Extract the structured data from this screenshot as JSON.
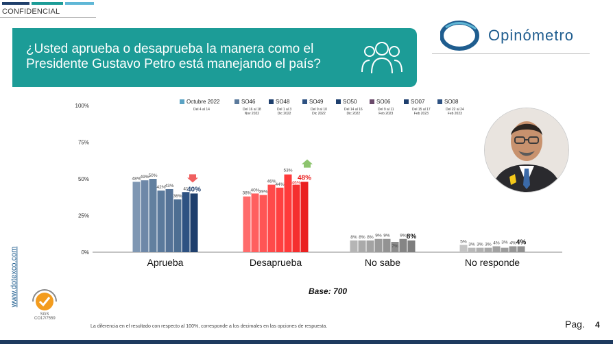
{
  "header": {
    "confidential": "CONFIDENCIAL",
    "topbar_colors": [
      "#1f3f6b",
      "#1c9c97",
      "#5fb7d6"
    ]
  },
  "banner": {
    "title_line1": "¿Usted aprueba o desaprueba la manera como el",
    "title_line2": "Presidente Gustavo Petro está manejando el país?",
    "icon": "people-group-icon",
    "color": "#1c9c97"
  },
  "logo": {
    "text": "Opinómetro",
    "color": "#1f5d8f"
  },
  "chart_data": {
    "type": "bar",
    "categories": [
      "Aprueba",
      "Desaprueba",
      "No sabe",
      "No responde"
    ],
    "series": [
      {
        "name": "Octubre 2022",
        "sub": "Del 4 al 14",
        "values": [
          48,
          38,
          8,
          5
        ]
      },
      {
        "name": "SO46",
        "sub": "Del 16 al 18\nNov 2022",
        "values": [
          49,
          40,
          8,
          3
        ]
      },
      {
        "name": "SO48",
        "sub": "Del 1 al 3\nDic 2022",
        "values": [
          50,
          39,
          8,
          3
        ]
      },
      {
        "name": "SO49",
        "sub": "Del 9 al 10\nDic 2022",
        "values": [
          42,
          46,
          9,
          3
        ]
      },
      {
        "name": "SO50",
        "sub": "Del 14 al 16\nDic 2022",
        "values": [
          43,
          44,
          9,
          4
        ]
      },
      {
        "name": "SO06",
        "sub": "Del 9 al 11\nFeb 2023",
        "values": [
          36,
          53,
          7,
          3
        ]
      },
      {
        "name": "SO07",
        "sub": "Del 15 al 17\nFeb 2023",
        "values": [
          41,
          46,
          9,
          4
        ]
      },
      {
        "name": "SO08",
        "sub": "Del 22 al 24\nFeb 2023",
        "values": [
          40,
          48,
          8,
          4
        ]
      }
    ],
    "data_labels": [
      [
        "48%",
        "49%",
        "50%",
        "42%",
        "43%",
        "36%",
        "41",
        "40%"
      ],
      [
        "38%",
        "40%",
        "39%",
        "46%",
        "44%",
        "53%",
        "46%",
        "48%"
      ],
      [
        "8%",
        "8%",
        "8%",
        "9%",
        "9%",
        "7%",
        "9%",
        "8%"
      ],
      [
        "5%",
        "3%",
        "3%",
        "3%",
        "4%",
        "3%",
        "4%",
        "4%"
      ]
    ],
    "category_colors": [
      [
        "#7f97b3",
        "#6e88a8",
        "#62809f",
        "#5b7a9c",
        "#557397",
        "#4d6e92",
        "#2e5282",
        "#1e3f6d"
      ],
      [
        "#ff6b6b",
        "#ff5f5f",
        "#ff5555",
        "#ff4a4a",
        "#ff4040",
        "#ff3a3a",
        "#f52f2f",
        "#ea2020"
      ],
      [
        "#b5b5b5",
        "#aaaaaa",
        "#a3a3a3",
        "#9a9a9a",
        "#939393",
        "#8c8c8c",
        "#858585",
        "#7e7e7e"
      ],
      [
        "#c4c4c4",
        "#b8b8b8",
        "#b0b0b0",
        "#a8a8a8",
        "#a2a2a2",
        "#9c9c9c",
        "#969696",
        "#909090"
      ]
    ],
    "legend_colors": [
      "#5ba3c4",
      "#5b7a9c",
      "#1e3f6d",
      "#2e5282",
      "#1e3f6d",
      "#6b4a6b",
      "#1e3f6d",
      "#2e5282"
    ],
    "yticks": [
      "0%",
      "25%",
      "50%",
      "75%",
      "100%"
    ],
    "ylim": [
      0,
      100
    ],
    "arrows": [
      {
        "category": "Aprueba",
        "direction": "down",
        "color": "#f06060"
      },
      {
        "category": "Desaprueba",
        "direction": "up",
        "color": "#8dc46e"
      }
    ]
  },
  "base_label": "Base: 700",
  "footnote": "La diferencia en el resultado con respecto al 100%, corresponde a los decimales en las opciones de respuesta.",
  "side_url": "www.dotexco.com",
  "seal": {
    "label": "SGS",
    "code": "CO17/7559"
  },
  "page": {
    "label": "Pag.",
    "number": "4"
  }
}
